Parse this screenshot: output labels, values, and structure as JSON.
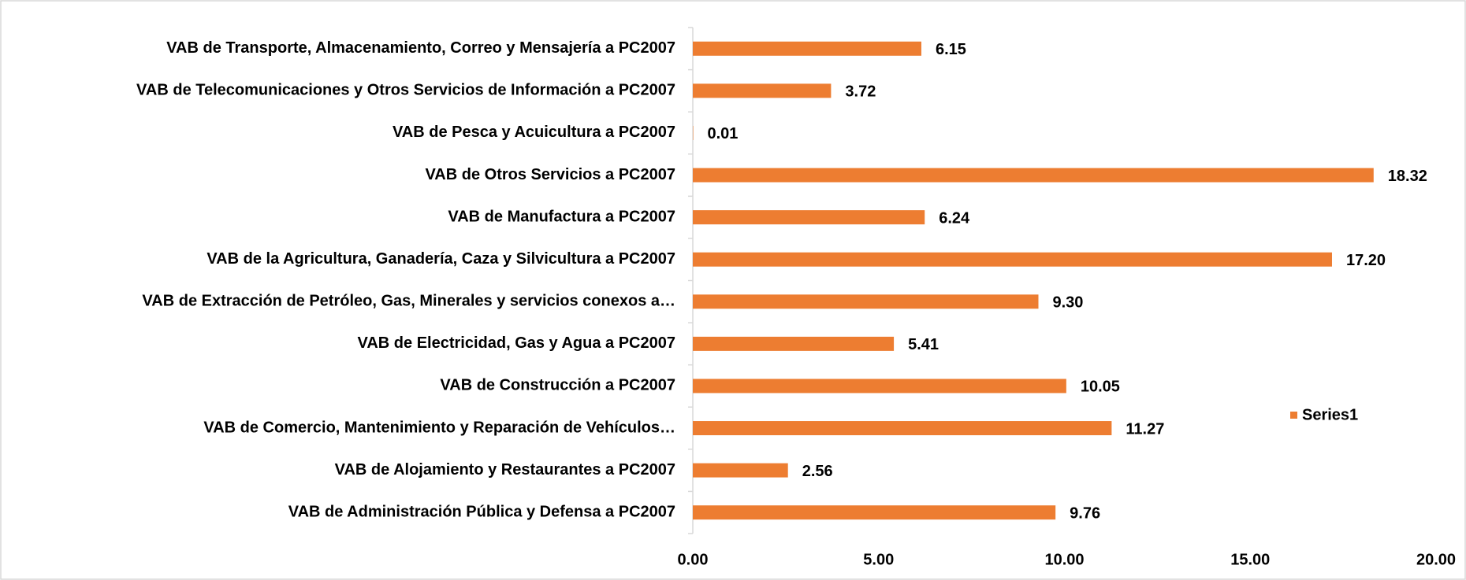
{
  "chart_data": {
    "type": "barh",
    "categories": [
      "VAB de Transporte, Almacenamiento, Correo y Mensajería a PC2007",
      "VAB de Telecomunicaciones y Otros Servicios de Información a PC2007",
      "VAB de Pesca y Acuicultura a PC2007",
      "VAB de Otros Servicios a PC2007",
      "VAB de Manufactura a PC2007",
      "VAB de la Agricultura, Ganadería, Caza y Silvicultura a PC2007",
      "VAB de Extracción de Petróleo, Gas, Minerales y servicios conexos a…",
      "VAB de Electricidad, Gas y Agua a PC2007",
      "VAB de Construcción a PC2007",
      "VAB de Comercio, Mantenimiento y Reparación de Vehículos…",
      "VAB de Alojamiento y Restaurantes a PC2007",
      "VAB de Administración Pública y Defensa a PC2007"
    ],
    "series": [
      {
        "name": "Series1",
        "color": "#ed7d31",
        "values": [
          6.15,
          3.72,
          0.01,
          18.32,
          6.24,
          17.2,
          9.3,
          5.41,
          10.05,
          11.27,
          2.56,
          9.76
        ],
        "value_labels": [
          "6.15",
          "3.72",
          "0.01",
          "18.32",
          "6.24",
          "17.20",
          "9.30",
          "5.41",
          "10.05",
          "11.27",
          "2.56",
          "9.76"
        ]
      }
    ],
    "xlim": [
      0,
      20
    ],
    "xticks": [
      {
        "value": 0,
        "label": "0.00"
      },
      {
        "value": 5,
        "label": "5.00"
      },
      {
        "value": 10,
        "label": "10.00"
      },
      {
        "value": 15,
        "label": "15.00"
      },
      {
        "value": 20,
        "label": "20.00"
      }
    ],
    "legend": "right"
  }
}
